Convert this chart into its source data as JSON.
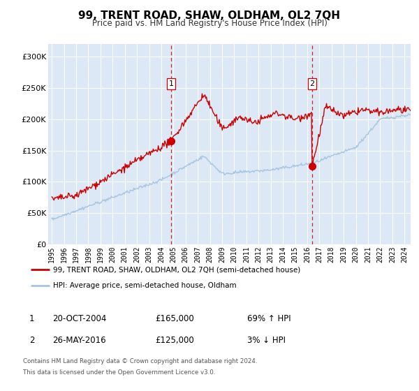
{
  "title": "99, TRENT ROAD, SHAW, OLDHAM, OL2 7QH",
  "subtitle": "Price paid vs. HM Land Registry's House Price Index (HPI)",
  "legend_entry1": "99, TRENT ROAD, SHAW, OLDHAM, OL2 7QH (semi-detached house)",
  "legend_entry2": "HPI: Average price, semi-detached house, Oldham",
  "sale1_date_display": "20-OCT-2004",
  "sale1_price_display": "£165,000",
  "sale1_hpi_display": "69% ↑ HPI",
  "sale2_date_display": "26-MAY-2016",
  "sale2_price_display": "£125,000",
  "sale2_hpi_display": "3% ↓ HPI",
  "sale1_year": 2004.8,
  "sale1_price": 165000,
  "sale2_year": 2016.4,
  "sale2_price": 125000,
  "footer_line1": "Contains HM Land Registry data © Crown copyright and database right 2024.",
  "footer_line2": "This data is licensed under the Open Government Licence v3.0.",
  "hpi_color": "#a8c4de",
  "price_color": "#cc0000",
  "sale_marker_color": "#cc0000",
  "vline_color": "#cc0000",
  "ylim": [
    0,
    320000
  ],
  "xlim_start": 1994.7,
  "xlim_end": 2024.5,
  "background_color": "#dce8f5",
  "grid_color": "#ffffff"
}
